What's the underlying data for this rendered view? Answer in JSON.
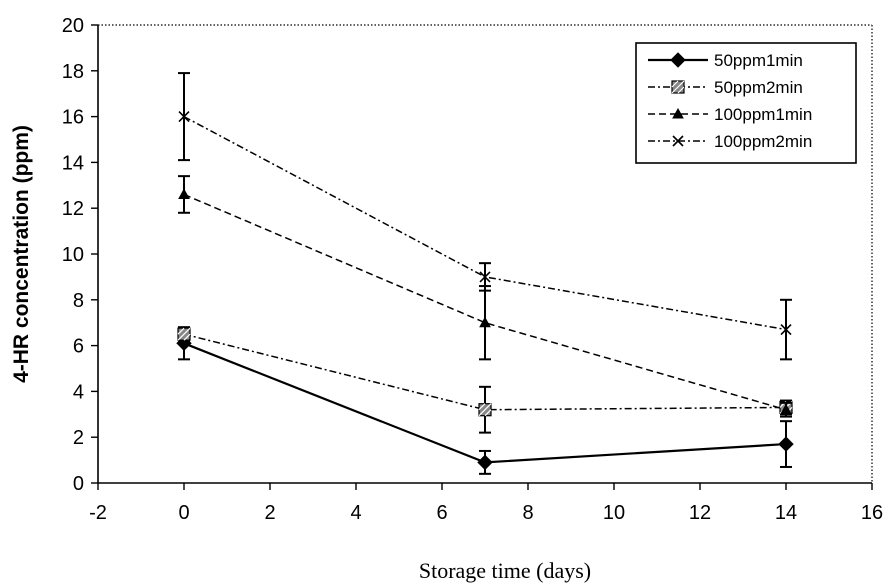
{
  "chart_data": {
    "type": "line",
    "title": "",
    "xlabel": "Storage time (days)",
    "ylabel": "4-HR concentration (ppm)",
    "xlim": [
      -2,
      16
    ],
    "ylim": [
      0,
      20
    ],
    "xticks": [
      "-2",
      "0",
      "2",
      "4",
      "6",
      "8",
      "10",
      "12",
      "14",
      "16"
    ],
    "yticks": [
      "0",
      "2",
      "4",
      "6",
      "8",
      "10",
      "12",
      "14",
      "16",
      "18",
      "20"
    ],
    "grid": false,
    "legend_position": "top-right",
    "series": [
      {
        "name": "50ppm1min",
        "x": [
          0,
          7,
          14
        ],
        "y": [
          6.1,
          0.9,
          1.7
        ],
        "error": [
          0.7,
          0.5,
          1.0
        ],
        "marker": "diamond",
        "line": "solid",
        "color": "#000000"
      },
      {
        "name": "50ppm2min",
        "x": [
          0,
          7,
          14
        ],
        "y": [
          6.5,
          3.2,
          3.3
        ],
        "error": [
          0.3,
          1.0,
          0.3
        ],
        "marker": "hatched-square",
        "line": "dashdot",
        "color": "#000000"
      },
      {
        "name": "100ppm1min",
        "x": [
          0,
          7,
          14
        ],
        "y": [
          12.6,
          7.0,
          3.2
        ],
        "error": [
          0.8,
          1.6,
          0.3
        ],
        "marker": "triangle",
        "line": "dashed",
        "color": "#000000"
      },
      {
        "name": "100ppm2min",
        "x": [
          0,
          7,
          14
        ],
        "y": [
          16.0,
          9.0,
          6.7
        ],
        "error": [
          1.9,
          0.6,
          1.3
        ],
        "marker": "x",
        "line": "dashdot",
        "color": "#000000"
      }
    ]
  }
}
